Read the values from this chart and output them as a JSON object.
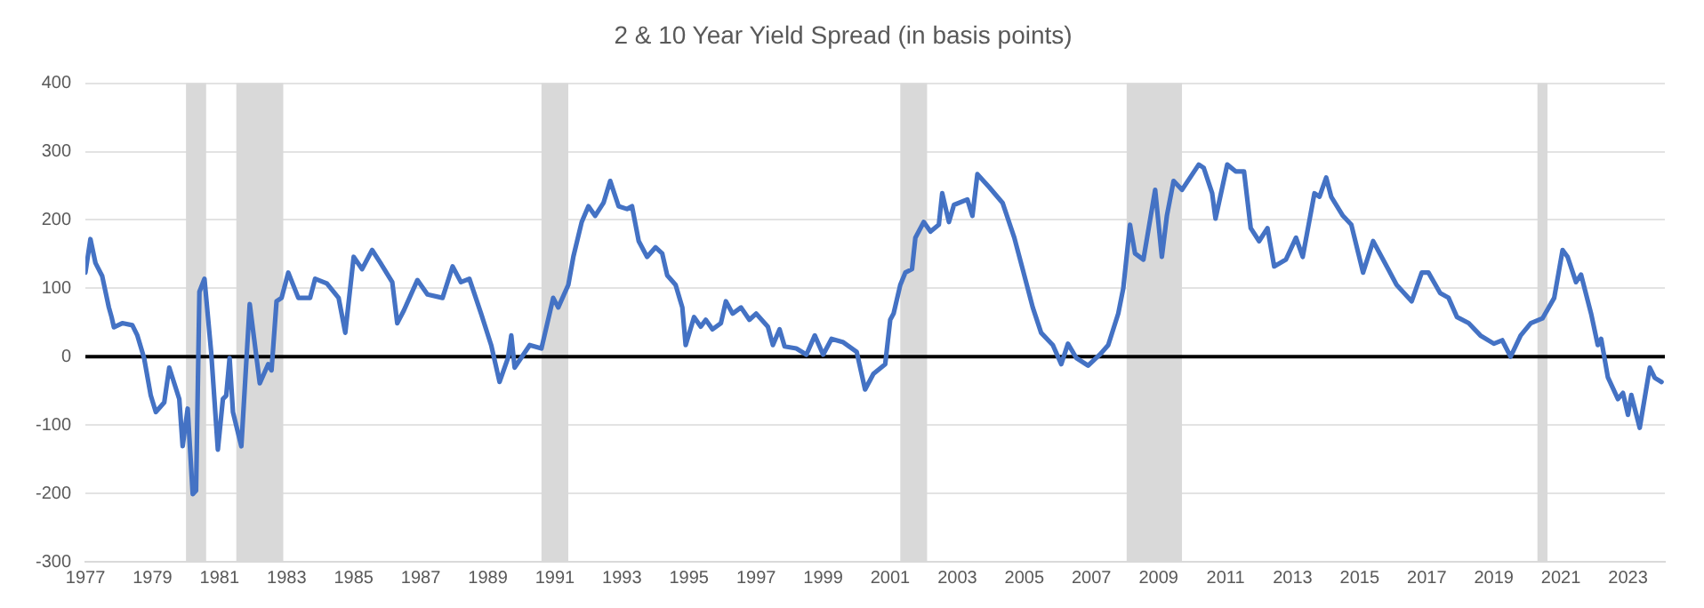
{
  "chart_data": {
    "type": "line",
    "title": "2 & 10 Year Yield Spread (in basis points)",
    "xlim": [
      1977,
      2024.1
    ],
    "xticks": [
      1977,
      1979,
      1981,
      1983,
      1985,
      1987,
      1989,
      1991,
      1993,
      1995,
      1997,
      1999,
      2001,
      2003,
      2005,
      2007,
      2009,
      2011,
      2013,
      2015,
      2017,
      2019,
      2021,
      2023
    ],
    "ylim": [
      -300,
      400
    ],
    "yticks": [
      -300,
      -200,
      -100,
      0,
      100,
      200,
      300,
      400
    ],
    "grid": "y",
    "marker": "none",
    "line_style": "solid",
    "ref_lines": [
      {
        "axis": "y",
        "value": 0,
        "color": "#000000"
      }
    ],
    "bands": [
      {
        "axis": "x",
        "from": 1980.0,
        "to": 1980.6,
        "color": "#d9d9d9"
      },
      {
        "axis": "x",
        "from": 1981.5,
        "to": 1982.9,
        "color": "#d9d9d9"
      },
      {
        "axis": "x",
        "from": 1990.6,
        "to": 1991.4,
        "color": "#d9d9d9"
      },
      {
        "axis": "x",
        "from": 2001.3,
        "to": 2002.1,
        "color": "#d9d9d9"
      },
      {
        "axis": "x",
        "from": 2008.05,
        "to": 2009.7,
        "color": "#d9d9d9"
      },
      {
        "axis": "x",
        "from": 2020.3,
        "to": 2020.6,
        "color": "#d9d9d9"
      }
    ],
    "series": [
      {
        "color": "#4472c4",
        "x": [
          1977.0,
          1977.15,
          1977.3,
          1977.5,
          1977.7,
          1977.78,
          1977.85,
          1978.1,
          1978.4,
          1978.55,
          1978.75,
          1978.95,
          1979.1,
          1979.35,
          1979.5,
          1979.8,
          1979.9,
          1980.05,
          1980.2,
          1980.3,
          1980.4,
          1980.55,
          1980.75,
          1980.95,
          1981.1,
          1981.2,
          1981.3,
          1981.4,
          1981.65,
          1981.9,
          1982.2,
          1982.45,
          1982.55,
          1982.7,
          1982.85,
          1983.05,
          1983.35,
          1983.7,
          1983.85,
          1984.2,
          1984.55,
          1984.75,
          1985.0,
          1985.25,
          1985.55,
          1985.8,
          1986.15,
          1986.3,
          1986.5,
          1986.9,
          1987.2,
          1987.65,
          1987.95,
          1988.2,
          1988.45,
          1988.8,
          1989.1,
          1989.35,
          1989.6,
          1989.7,
          1989.8,
          1990.25,
          1990.6,
          1990.95,
          1991.1,
          1991.4,
          1991.55,
          1991.8,
          1992.0,
          1992.2,
          1992.45,
          1992.65,
          1992.9,
          1993.15,
          1993.3,
          1993.5,
          1993.75,
          1994.0,
          1994.2,
          1994.35,
          1994.6,
          1994.8,
          1994.9,
          1995.15,
          1995.35,
          1995.5,
          1995.7,
          1995.95,
          1996.1,
          1996.3,
          1996.55,
          1996.8,
          1997.0,
          1997.35,
          1997.5,
          1997.7,
          1997.85,
          1998.2,
          1998.5,
          1998.75,
          1999.0,
          1999.25,
          1999.6,
          2000.0,
          2000.25,
          2000.5,
          2000.85,
          2001.0,
          2001.1,
          2001.3,
          2001.45,
          2001.65,
          2001.75,
          2002.0,
          2002.2,
          2002.45,
          2002.55,
          2002.75,
          2002.9,
          2003.3,
          2003.45,
          2003.6,
          2003.95,
          2004.35,
          2004.7,
          2004.95,
          2005.25,
          2005.5,
          2005.85,
          2006.1,
          2006.3,
          2006.55,
          2006.9,
          2007.25,
          2007.5,
          2007.8,
          2007.95,
          2008.15,
          2008.3,
          2008.55,
          2008.9,
          2009.1,
          2009.25,
          2009.45,
          2009.7,
          2010.2,
          2010.35,
          2010.6,
          2010.7,
          2011.05,
          2011.3,
          2011.55,
          2011.75,
          2012.0,
          2012.25,
          2012.45,
          2012.8,
          2013.1,
          2013.3,
          2013.65,
          2013.8,
          2014.0,
          2014.15,
          2014.5,
          2014.75,
          2015.1,
          2015.4,
          2015.85,
          2016.1,
          2016.55,
          2016.85,
          2017.05,
          2017.4,
          2017.65,
          2017.9,
          2018.25,
          2018.6,
          2019.0,
          2019.25,
          2019.5,
          2019.8,
          2020.1,
          2020.45,
          2020.8,
          2021.05,
          2021.2,
          2021.45,
          2021.6,
          2021.9,
          2022.1,
          2022.2,
          2022.4,
          2022.7,
          2022.85,
          2023.0,
          2023.1,
          2023.35,
          2023.65,
          2023.8,
          2024.0
        ],
        "values": [
          123,
          172,
          137,
          118,
          72,
          58,
          43,
          49,
          46,
          31,
          -2,
          -57,
          -81,
          -67,
          -16,
          -62,
          -131,
          -76,
          -201,
          -196,
          95,
          114,
          7,
          -136,
          -62,
          -57,
          -2,
          -81,
          -131,
          77,
          -39,
          -11,
          -20,
          81,
          86,
          123,
          86,
          86,
          114,
          107,
          86,
          35,
          146,
          128,
          156,
          137,
          109,
          49,
          68,
          112,
          91,
          86,
          132,
          109,
          114,
          63,
          17,
          -37,
          -2,
          31,
          -16,
          17,
          12,
          86,
          72,
          105,
          146,
          197,
          220,
          206,
          225,
          257,
          220,
          216,
          220,
          169,
          146,
          160,
          151,
          119,
          105,
          72,
          17,
          58,
          44,
          54,
          40,
          49,
          81,
          63,
          72,
          54,
          63,
          44,
          17,
          40,
          15,
          12,
          3,
          31,
          3,
          26,
          21,
          7,
          -48,
          -25,
          -11,
          54,
          63,
          105,
          123,
          128,
          174,
          197,
          183,
          193,
          239,
          197,
          222,
          230,
          206,
          267,
          248,
          225,
          174,
          128,
          72,
          35,
          17,
          -11,
          19,
          -2,
          -13,
          3,
          17,
          63,
          100,
          193,
          151,
          142,
          244,
          146,
          206,
          257,
          244,
          281,
          276,
          239,
          202,
          281,
          271,
          271,
          188,
          169,
          188,
          132,
          142,
          174,
          146,
          239,
          234,
          262,
          234,
          206,
          193,
          123,
          169,
          128,
          105,
          81,
          123,
          123,
          93,
          86,
          58,
          49,
          31,
          19,
          24,
          0,
          31,
          49,
          56,
          86,
          156,
          146,
          109,
          120,
          63,
          17,
          26,
          -30,
          -62,
          -53,
          -85,
          -56,
          -104,
          -16,
          -31,
          -37
        ]
      }
    ]
  }
}
